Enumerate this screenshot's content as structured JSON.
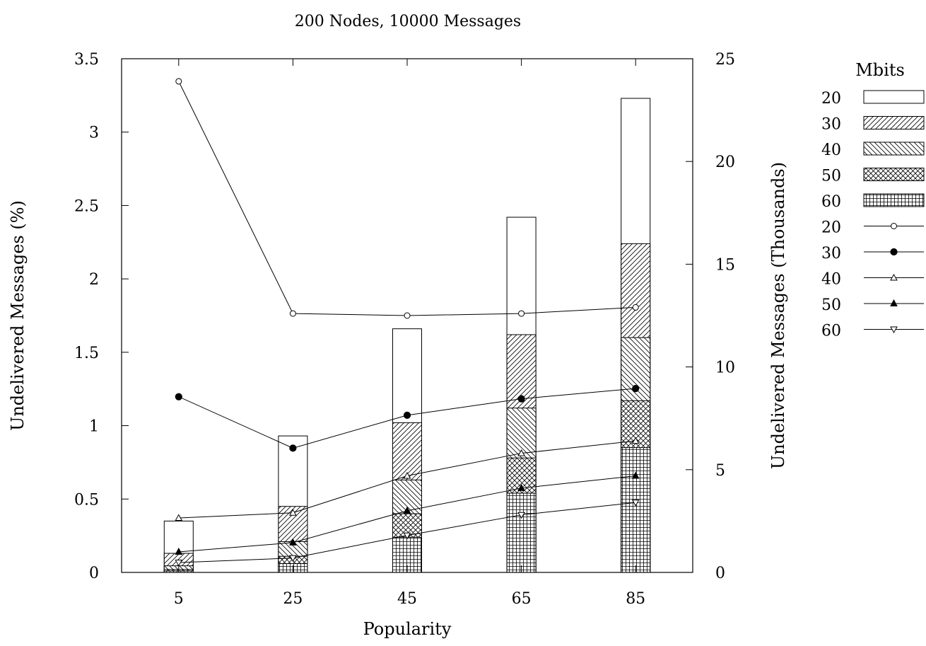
{
  "chart_data": {
    "type": "bar",
    "title": "200 Nodes, 10000 Messages",
    "xlabel": "Popularity",
    "ylabel": "Undelivered Messages (%)",
    "y2label": "Undelivered Messages (Thousands)",
    "categories": [
      "5",
      "25",
      "45",
      "65",
      "85"
    ],
    "ylim": [
      0,
      3.5
    ],
    "yticks": [
      "0",
      "0.5",
      "1",
      "1.5",
      "2",
      "2.5",
      "3",
      "3.5"
    ],
    "y2lim": [
      0,
      25
    ],
    "y2ticks": [
      "0",
      "5",
      "10",
      "15",
      "20",
      "25"
    ],
    "grid": false,
    "legend_title": "Mbits",
    "legend_position": "right",
    "bar_series": [
      {
        "name": "20",
        "pattern": "white",
        "values": [
          0.35,
          0.93,
          1.66,
          2.42,
          3.23
        ]
      },
      {
        "name": "30",
        "pattern": "diagonal-up",
        "values": [
          0.13,
          0.45,
          1.02,
          1.62,
          2.24
        ]
      },
      {
        "name": "40",
        "pattern": "diagonal-down",
        "values": [
          0.045,
          0.21,
          0.63,
          1.12,
          1.6
        ]
      },
      {
        "name": "50",
        "pattern": "crosshatch",
        "values": [
          0.02,
          0.11,
          0.4,
          0.78,
          1.17
        ]
      },
      {
        "name": "60",
        "pattern": "grid",
        "values": [
          0.01,
          0.06,
          0.24,
          0.54,
          0.85
        ]
      }
    ],
    "line_series": [
      {
        "name": "20",
        "marker": "open-circle",
        "values": [
          23.9,
          12.6,
          12.5,
          12.6,
          12.9
        ]
      },
      {
        "name": "30",
        "marker": "filled-circle",
        "values": [
          8.55,
          6.05,
          7.65,
          8.45,
          8.95
        ]
      },
      {
        "name": "40",
        "marker": "open-triangle-up",
        "values": [
          2.65,
          2.9,
          4.7,
          5.8,
          6.4
        ]
      },
      {
        "name": "50",
        "marker": "filled-triangle-up",
        "values": [
          1.0,
          1.45,
          3.0,
          4.1,
          4.7
        ]
      },
      {
        "name": "60",
        "marker": "open-triangle-down",
        "values": [
          0.48,
          0.7,
          1.8,
          2.8,
          3.4
        ]
      }
    ]
  }
}
